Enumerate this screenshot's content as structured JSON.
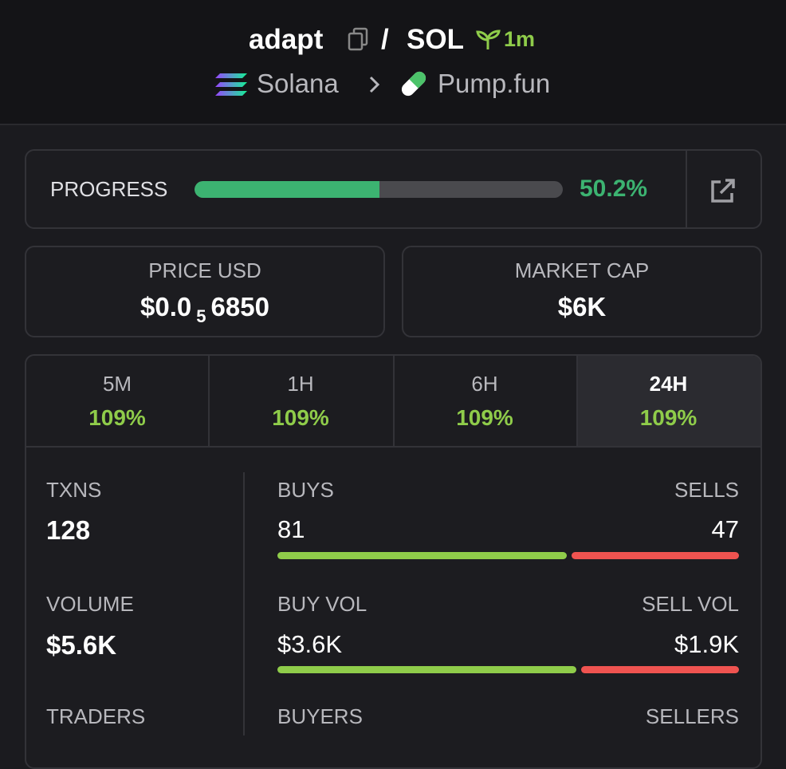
{
  "header": {
    "token": "adapt",
    "separator": "/",
    "quote": "SOL",
    "age": "1m",
    "chain": "Solana",
    "dex": "Pump.fun"
  },
  "progress": {
    "label": "PROGRESS",
    "value": 50.2,
    "value_label": "50.2%"
  },
  "price": {
    "label": "PRICE USD",
    "prefix": "$0.0",
    "zeros": "5",
    "digits": "6850"
  },
  "market_cap": {
    "label": "MARKET CAP",
    "value": "$6K"
  },
  "tabs": [
    {
      "label": "5M",
      "change": "109%"
    },
    {
      "label": "1H",
      "change": "109%"
    },
    {
      "label": "6H",
      "change": "109%"
    },
    {
      "label": "24H",
      "change": "109%"
    }
  ],
  "stats": {
    "txns": {
      "label": "TXNS",
      "value": "128"
    },
    "buys": {
      "label": "BUYS",
      "value": 81
    },
    "sells": {
      "label": "SELLS",
      "value": 47
    },
    "volume": {
      "label": "VOLUME",
      "value": "$5.6K"
    },
    "buy_vol": {
      "label": "BUY VOL",
      "value": 3600,
      "value_label": "$3.6K"
    },
    "sell_vol": {
      "label": "SELL VOL",
      "value": 1900,
      "value_label": "$1.9K"
    },
    "traders": {
      "label": "TRADERS"
    },
    "buyers": {
      "label": "BUYERS"
    },
    "sellers": {
      "label": "SELLERS"
    }
  }
}
